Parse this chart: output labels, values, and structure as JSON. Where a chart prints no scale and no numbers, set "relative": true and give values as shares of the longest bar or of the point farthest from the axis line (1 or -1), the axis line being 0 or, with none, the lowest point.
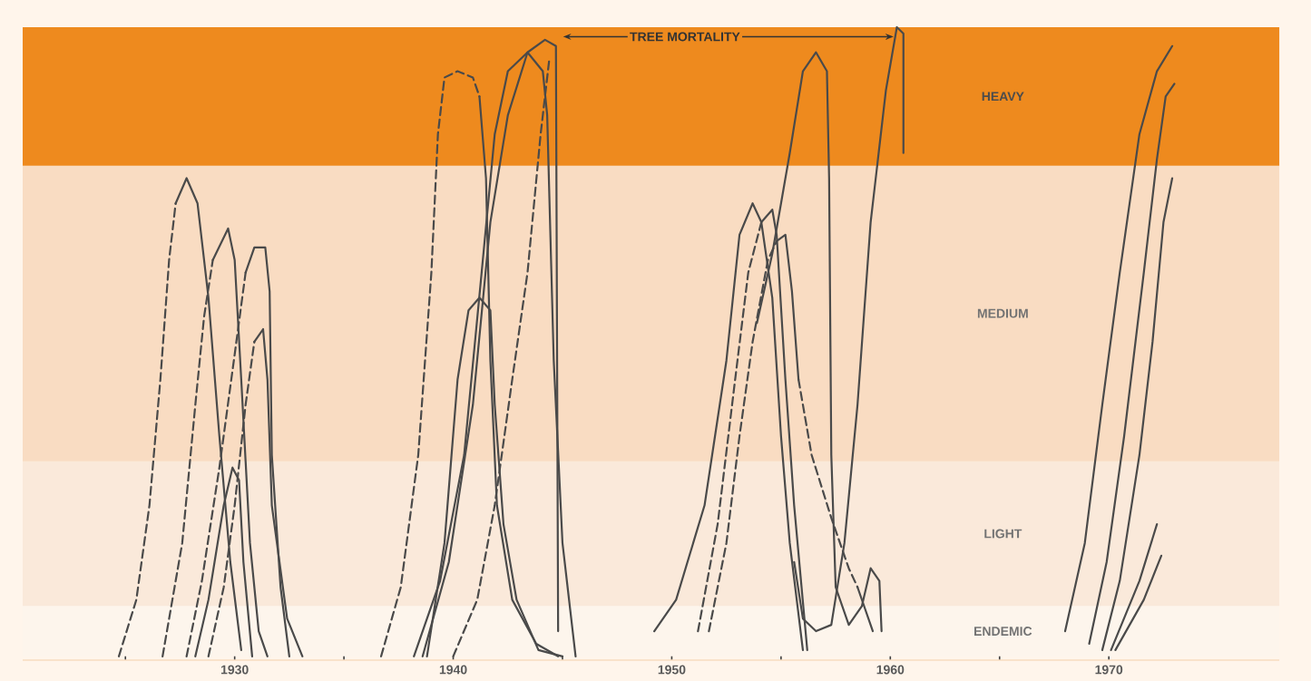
{
  "chart_data": {
    "type": "line",
    "relative": true,
    "marker": "none",
    "annotations": [
      "TREE MORTALITY"
    ],
    "xlim": [
      1920.3,
      1977.8
    ],
    "xticks": [
      {
        "value": 1925,
        "label": null
      },
      1930,
      {
        "value": 1935,
        "label": null
      },
      1940,
      {
        "value": 1945,
        "label": null
      },
      1950,
      {
        "value": 1955,
        "label": null
      },
      1960,
      {
        "value": 1965,
        "label": null
      },
      1970
    ],
    "bands": [
      {
        "axis": "y",
        "from": 0,
        "to": 0.08,
        "label": "ENDEMIC",
        "color": "#fdf5ec"
      },
      {
        "axis": "y",
        "from": 0.08,
        "to": 0.31,
        "label": "LIGHT",
        "color": "#fae9da"
      },
      {
        "axis": "y",
        "from": 0.31,
        "to": 0.78,
        "label": "MEDIUM",
        "color": "#f9dcc2"
      },
      {
        "axis": "y",
        "from": 0.78,
        "to": 1.0,
        "label": "HEAVY",
        "color": "#ee8a1e"
      }
    ],
    "series": [
      {
        "color": "#4a4a4a",
        "line_style": "dashed",
        "x": [
          1924.7,
          1925.5,
          1926.1,
          1926.6,
          1927.0,
          1927.3
        ],
        "values": [
          0,
          0.09,
          0.24,
          0.44,
          0.63,
          0.72
        ]
      },
      {
        "color": "#4a4a4a",
        "line_style": "solid",
        "x": [
          1927.3,
          1927.8,
          1928.3,
          1928.8,
          1929.3,
          1929.8,
          1930.3
        ],
        "values": [
          0.72,
          0.76,
          0.72,
          0.57,
          0.35,
          0.15,
          0.01
        ]
      },
      {
        "color": "#4a4a4a",
        "line_style": "dashed",
        "x": [
          1926.7,
          1927.6,
          1928.2,
          1928.6,
          1929.0
        ],
        "values": [
          0,
          0.18,
          0.4,
          0.54,
          0.63
        ]
      },
      {
        "color": "#4a4a4a",
        "line_style": "solid",
        "x": [
          1929.0,
          1929.7,
          1930.0,
          1930.3,
          1930.7,
          1931.1,
          1931.5
        ],
        "values": [
          0.63,
          0.68,
          0.63,
          0.44,
          0.18,
          0.04,
          0.0
        ]
      },
      {
        "color": "#4a4a4a",
        "line_style": "dashed",
        "x": [
          1927.8,
          1928.5,
          1929.3,
          1930.0,
          1930.5
        ],
        "values": [
          0,
          0.12,
          0.3,
          0.48,
          0.61
        ]
      },
      {
        "color": "#4a4a4a",
        "line_style": "solid",
        "x": [
          1930.5,
          1930.9,
          1931.4,
          1931.6,
          1931.7,
          1932.1,
          1932.5
        ],
        "values": [
          0.61,
          0.65,
          0.65,
          0.58,
          0.32,
          0.11,
          0.0
        ]
      },
      {
        "color": "#4a4a4a",
        "line_style": "dashed",
        "x": [
          1928.8,
          1929.5,
          1930.0,
          1930.5,
          1930.9
        ],
        "values": [
          0,
          0.11,
          0.24,
          0.4,
          0.5
        ]
      },
      {
        "color": "#4a4a4a",
        "line_style": "solid",
        "x": [
          1930.9,
          1931.3,
          1931.5,
          1931.7,
          1932.4,
          1933.1
        ],
        "values": [
          0.5,
          0.52,
          0.44,
          0.24,
          0.06,
          0.0
        ]
      },
      {
        "color": "#4a4a4a",
        "line_style": "solid",
        "x": [
          1928.2,
          1928.8,
          1929.5,
          1929.9,
          1930.2,
          1930.4,
          1930.8
        ],
        "values": [
          0,
          0.09,
          0.24,
          0.3,
          0.28,
          0.15,
          0.0
        ]
      },
      {
        "color": "#4a4a4a",
        "line_style": "dashed",
        "x": [
          1936.7,
          1937.6,
          1938.4,
          1939.0,
          1939.3,
          1939.6,
          1940.2,
          1940.9,
          1941.2
        ],
        "values": [
          0,
          0.11,
          0.32,
          0.61,
          0.83,
          0.92,
          0.93,
          0.92,
          0.89
        ]
      },
      {
        "color": "#4a4a4a",
        "line_style": "solid",
        "x": [
          1941.2,
          1941.5,
          1941.7,
          1942.0,
          1942.7,
          1943.8,
          1944.8
        ],
        "values": [
          0.89,
          0.76,
          0.47,
          0.24,
          0.09,
          0.02,
          0.0
        ]
      },
      {
        "color": "#4a4a4a",
        "line_style": "solid",
        "x": [
          1938.8,
          1939.6,
          1940.2,
          1940.7,
          1941.2,
          1941.7,
          1941.9,
          1942.3,
          1942.9,
          1943.9,
          1945.0
        ],
        "values": [
          0,
          0.18,
          0.44,
          0.55,
          0.57,
          0.55,
          0.4,
          0.21,
          0.09,
          0.01,
          0.0
        ]
      },
      {
        "color": "#4a4a4a",
        "line_style": "solid",
        "x": [
          1938.2,
          1939.4,
          1940.5,
          1941.3,
          1941.9,
          1942.5,
          1943.4,
          1944.1,
          1944.3,
          1944.6,
          1945.0,
          1945.6
        ],
        "values": [
          0,
          0.12,
          0.32,
          0.61,
          0.83,
          0.93,
          0.96,
          0.93,
          0.86,
          0.47,
          0.18,
          0.0
        ]
      },
      {
        "color": "#4a4a4a",
        "line_style": "solid",
        "x": [
          1938.6,
          1939.8,
          1940.9,
          1941.7,
          1942.5,
          1943.4,
          1944.2,
          1944.7,
          1944.8
        ],
        "values": [
          0,
          0.15,
          0.4,
          0.69,
          0.86,
          0.96,
          0.98,
          0.97,
          0.04
        ]
      },
      {
        "color": "#4a4a4a",
        "line_style": "dashed",
        "x": [
          1940.0,
          1941.1,
          1941.9,
          1942.7,
          1943.4,
          1944.0,
          1944.4
        ],
        "values": [
          0,
          0.09,
          0.24,
          0.44,
          0.61,
          0.83,
          0.95
        ]
      },
      {
        "color": "#4a4a4a",
        "line_style": "solid",
        "x": [
          1949.2,
          1950.2,
          1951.5,
          1952.5,
          1953.1,
          1953.7,
          1954.1,
          1954.6,
          1955.0,
          1955.4,
          1956.0
        ],
        "values": [
          0.04,
          0.09,
          0.24,
          0.47,
          0.67,
          0.72,
          0.69,
          0.57,
          0.35,
          0.18,
          0.01
        ]
      },
      {
        "color": "#4a4a4a",
        "line_style": "dashed",
        "x": [
          1951.2,
          1952.1,
          1952.9,
          1953.5,
          1954.1
        ],
        "values": [
          0.04,
          0.21,
          0.44,
          0.61,
          0.69
        ]
      },
      {
        "color": "#4a4a4a",
        "line_style": "solid",
        "x": [
          1954.1,
          1954.6,
          1954.8,
          1955.2,
          1955.6,
          1956.2
        ],
        "values": [
          0.69,
          0.71,
          0.67,
          0.44,
          0.24,
          0.01
        ]
      },
      {
        "color": "#4a4a4a",
        "line_style": "dashed",
        "x": [
          1951.7,
          1952.5,
          1953.1,
          1953.7,
          1954.4,
          1954.8
        ],
        "values": [
          0.04,
          0.18,
          0.35,
          0.5,
          0.63,
          0.66
        ]
      },
      {
        "color": "#4a4a4a",
        "line_style": "solid",
        "x": [
          1954.8,
          1955.2,
          1955.5,
          1955.8
        ],
        "values": [
          0.66,
          0.67,
          0.58,
          0.44
        ]
      },
      {
        "color": "#4a4a4a",
        "line_style": "dashed",
        "x": [
          1955.8,
          1956.4,
          1957.3,
          1958.1,
          1958.5
        ],
        "values": [
          0.44,
          0.32,
          0.22,
          0.14,
          0.11
        ]
      },
      {
        "color": "#4a4a4a",
        "line_style": "solid",
        "x": [
          1958.5,
          1959.2
        ],
        "values": [
          0.11,
          0.04
        ]
      },
      {
        "color": "#4a4a4a",
        "line_style": "solid",
        "x": [
          1953.9,
          1954.6,
          1955.4,
          1956.0,
          1956.6,
          1957.1,
          1957.2,
          1957.3,
          1957.5,
          1958.1,
          1958.7,
          1959.1,
          1959.5,
          1959.6
        ],
        "values": [
          0.53,
          0.64,
          0.8,
          0.93,
          0.96,
          0.93,
          0.76,
          0.32,
          0.11,
          0.05,
          0.08,
          0.14,
          0.12,
          0.04
        ]
      },
      {
        "color": "#4a4a4a",
        "line_style": "solid",
        "x": [
          1955.6,
          1956.0,
          1956.6,
          1957.3,
          1957.9,
          1958.5,
          1959.1,
          1959.8,
          1960.3,
          1960.6,
          1960.6
        ],
        "values": [
          0.15,
          0.06,
          0.04,
          0.05,
          0.18,
          0.4,
          0.69,
          0.9,
          1.0,
          0.99,
          0.8
        ]
      },
      {
        "color": "#4a4a4a",
        "line_style": "solid",
        "x": [
          1968.0,
          1968.9,
          1969.7,
          1970.5,
          1971.4,
          1972.2,
          1972.9
        ],
        "values": [
          0.04,
          0.18,
          0.4,
          0.61,
          0.83,
          0.93,
          0.97
        ]
      },
      {
        "color": "#4a4a4a",
        "line_style": "solid",
        "x": [
          1969.1,
          1969.9,
          1970.7,
          1971.6,
          1972.2,
          1972.6,
          1973.0
        ],
        "values": [
          0.02,
          0.15,
          0.35,
          0.61,
          0.79,
          0.89,
          0.91
        ]
      },
      {
        "color": "#4a4a4a",
        "line_style": "solid",
        "x": [
          1969.7,
          1970.5,
          1971.4,
          1972.0,
          1972.5,
          1972.9
        ],
        "values": [
          0.01,
          0.12,
          0.32,
          0.5,
          0.69,
          0.76
        ]
      },
      {
        "color": "#4a4a4a",
        "line_style": "solid",
        "x": [
          1970.1,
          1971.4,
          1972.2
        ],
        "values": [
          0.01,
          0.12,
          0.21
        ]
      },
      {
        "color": "#4a4a4a",
        "line_style": "solid",
        "x": [
          1970.3,
          1971.6,
          1972.4
        ],
        "values": [
          0.01,
          0.09,
          0.16
        ]
      }
    ]
  }
}
